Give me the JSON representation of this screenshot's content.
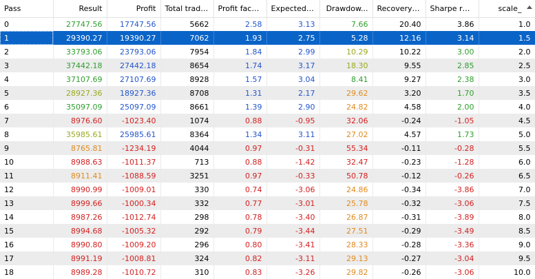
{
  "headers": [
    "Pass",
    "Result",
    "Profit",
    "Total trades",
    "Profit factor",
    "Expected ...",
    "Drawdow...",
    "Recovery f...",
    "Sharpe ratio",
    "scale_"
  ],
  "sort_icon": "sort-ascending-icon",
  "colors": {
    "green": "#2e9e2e",
    "olive": "#9aa81e",
    "orange": "#e08a1e",
    "red": "#d42020",
    "blue": "#2255cc",
    "black": "#000000",
    "selected_bg": "#0a64c8",
    "stripe_bg": "#ececec"
  },
  "selected_row": 1,
  "rows": [
    {
      "cells": [
        "0",
        "27747.56",
        "17747.56",
        "5662",
        "2.58",
        "3.13",
        "7.66",
        "20.40",
        "3.86",
        "1.0"
      ],
      "colors": [
        "black",
        "green",
        "blue",
        "black",
        "blue",
        "blue",
        "green",
        "black",
        "black",
        "black"
      ]
    },
    {
      "cells": [
        "1",
        "29390.27",
        "19390.27",
        "7062",
        "1.93",
        "2.75",
        "5.28",
        "12.16",
        "3.14",
        "1.5"
      ],
      "colors": [
        "black",
        "green",
        "blue",
        "black",
        "blue",
        "blue",
        "green",
        "black",
        "black",
        "black"
      ]
    },
    {
      "cells": [
        "2",
        "33793.06",
        "23793.06",
        "7954",
        "1.84",
        "2.99",
        "10.29",
        "10.22",
        "3.00",
        "2.0"
      ],
      "colors": [
        "black",
        "green",
        "blue",
        "black",
        "blue",
        "blue",
        "olive",
        "black",
        "green",
        "black"
      ]
    },
    {
      "cells": [
        "3",
        "37442.18",
        "27442.18",
        "8654",
        "1.74",
        "3.17",
        "18.30",
        "9.55",
        "2.85",
        "2.5"
      ],
      "colors": [
        "black",
        "green",
        "blue",
        "black",
        "blue",
        "blue",
        "olive",
        "black",
        "green",
        "black"
      ]
    },
    {
      "cells": [
        "4",
        "37107.69",
        "27107.69",
        "8928",
        "1.57",
        "3.04",
        "8.41",
        "9.27",
        "2.38",
        "3.0"
      ],
      "colors": [
        "black",
        "green",
        "blue",
        "black",
        "blue",
        "blue",
        "green",
        "black",
        "green",
        "black"
      ]
    },
    {
      "cells": [
        "5",
        "28927.36",
        "18927.36",
        "8708",
        "1.31",
        "2.17",
        "29.62",
        "3.20",
        "1.70",
        "3.5"
      ],
      "colors": [
        "black",
        "olive",
        "blue",
        "black",
        "blue",
        "blue",
        "orange",
        "black",
        "green",
        "black"
      ]
    },
    {
      "cells": [
        "6",
        "35097.09",
        "25097.09",
        "8661",
        "1.39",
        "2.90",
        "24.82",
        "4.58",
        "2.00",
        "4.0"
      ],
      "colors": [
        "black",
        "green",
        "blue",
        "black",
        "blue",
        "blue",
        "orange",
        "black",
        "green",
        "black"
      ]
    },
    {
      "cells": [
        "7",
        "8976.60",
        "-1023.40",
        "1074",
        "0.88",
        "-0.95",
        "32.06",
        "-0.24",
        "-1.05",
        "4.5"
      ],
      "colors": [
        "black",
        "red",
        "red",
        "black",
        "red",
        "red",
        "red",
        "black",
        "red",
        "black"
      ]
    },
    {
      "cells": [
        "8",
        "35985.61",
        "25985.61",
        "8364",
        "1.34",
        "3.11",
        "27.02",
        "4.57",
        "1.73",
        "5.0"
      ],
      "colors": [
        "black",
        "olive",
        "blue",
        "black",
        "blue",
        "blue",
        "orange",
        "black",
        "green",
        "black"
      ]
    },
    {
      "cells": [
        "9",
        "8765.81",
        "-1234.19",
        "4044",
        "0.97",
        "-0.31",
        "55.34",
        "-0.11",
        "-0.28",
        "5.5"
      ],
      "colors": [
        "black",
        "orange",
        "red",
        "black",
        "red",
        "red",
        "red",
        "black",
        "red",
        "black"
      ]
    },
    {
      "cells": [
        "10",
        "8988.63",
        "-1011.37",
        "713",
        "0.88",
        "-1.42",
        "32.47",
        "-0.23",
        "-1.28",
        "6.0"
      ],
      "colors": [
        "black",
        "red",
        "red",
        "black",
        "red",
        "red",
        "red",
        "black",
        "red",
        "black"
      ]
    },
    {
      "cells": [
        "11",
        "8911.41",
        "-1088.59",
        "3251",
        "0.97",
        "-0.33",
        "50.78",
        "-0.12",
        "-0.26",
        "6.5"
      ],
      "colors": [
        "black",
        "orange",
        "red",
        "black",
        "red",
        "red",
        "red",
        "black",
        "red",
        "black"
      ]
    },
    {
      "cells": [
        "12",
        "8990.99",
        "-1009.01",
        "330",
        "0.74",
        "-3.06",
        "24.86",
        "-0.34",
        "-3.86",
        "7.0"
      ],
      "colors": [
        "black",
        "red",
        "red",
        "black",
        "red",
        "red",
        "orange",
        "black",
        "red",
        "black"
      ]
    },
    {
      "cells": [
        "13",
        "8999.66",
        "-1000.34",
        "332",
        "0.77",
        "-3.01",
        "25.78",
        "-0.32",
        "-3.06",
        "7.5"
      ],
      "colors": [
        "black",
        "red",
        "red",
        "black",
        "red",
        "red",
        "orange",
        "black",
        "red",
        "black"
      ]
    },
    {
      "cells": [
        "14",
        "8987.26",
        "-1012.74",
        "298",
        "0.78",
        "-3.40",
        "26.87",
        "-0.31",
        "-3.89",
        "8.0"
      ],
      "colors": [
        "black",
        "red",
        "red",
        "black",
        "red",
        "red",
        "orange",
        "black",
        "red",
        "black"
      ]
    },
    {
      "cells": [
        "15",
        "8994.68",
        "-1005.32",
        "292",
        "0.79",
        "-3.44",
        "27.51",
        "-0.29",
        "-3.49",
        "8.5"
      ],
      "colors": [
        "black",
        "red",
        "red",
        "black",
        "red",
        "red",
        "orange",
        "black",
        "red",
        "black"
      ]
    },
    {
      "cells": [
        "16",
        "8990.80",
        "-1009.20",
        "296",
        "0.80",
        "-3.41",
        "28.33",
        "-0.28",
        "-3.36",
        "9.0"
      ],
      "colors": [
        "black",
        "red",
        "red",
        "black",
        "red",
        "red",
        "orange",
        "black",
        "red",
        "black"
      ]
    },
    {
      "cells": [
        "17",
        "8991.19",
        "-1008.81",
        "324",
        "0.82",
        "-3.11",
        "29.13",
        "-0.27",
        "-3.04",
        "9.5"
      ],
      "colors": [
        "black",
        "red",
        "red",
        "black",
        "red",
        "red",
        "orange",
        "black",
        "red",
        "black"
      ]
    },
    {
      "cells": [
        "18",
        "8989.28",
        "-1010.72",
        "310",
        "0.83",
        "-3.26",
        "29.82",
        "-0.26",
        "-3.06",
        "10.0"
      ],
      "colors": [
        "black",
        "red",
        "red",
        "black",
        "red",
        "red",
        "orange",
        "black",
        "red",
        "black"
      ]
    }
  ]
}
